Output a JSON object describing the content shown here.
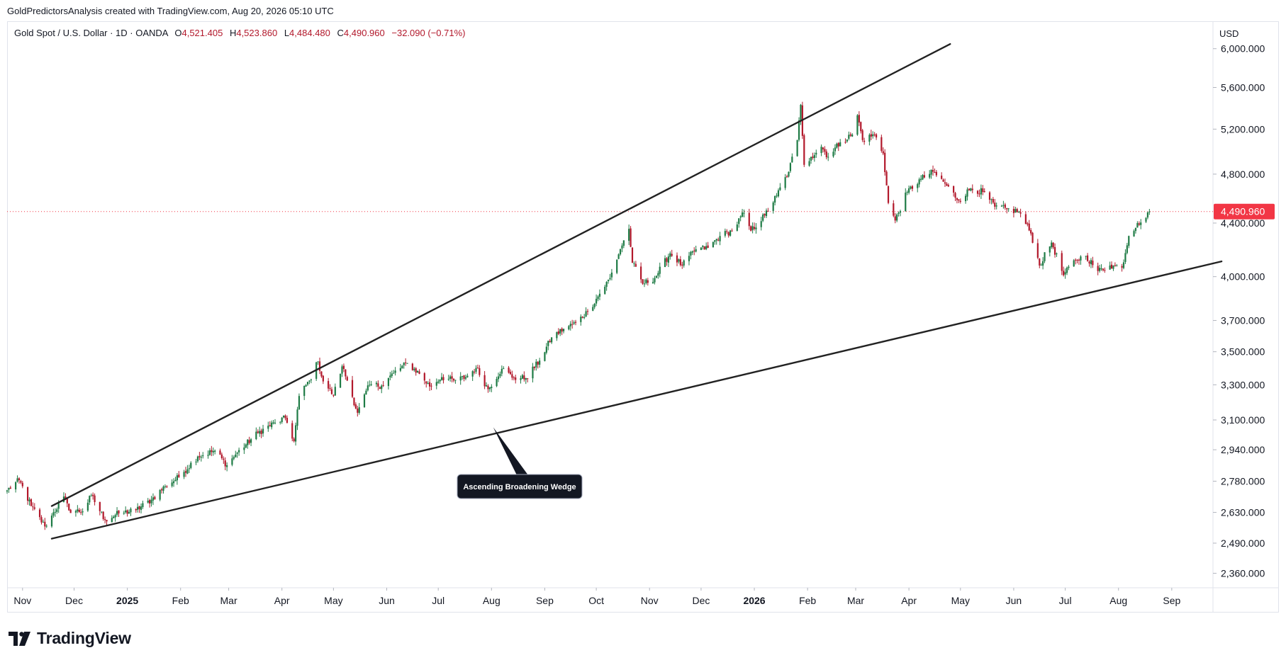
{
  "header": {
    "attribution": "GoldPredictorsAnalysis created with TradingView.com, Aug 20, 2026 05:10 UTC"
  },
  "legend": {
    "symbol": "Gold Spot / U.S. Dollar · 1D · OANDA",
    "open_label": "O",
    "open": "4,521.405",
    "high_label": "H",
    "high": "4,523.860",
    "low_label": "L",
    "low": "4,484.480",
    "close_label": "C",
    "close": "4,490.960",
    "change": "−32.090 (−0.71%)"
  },
  "currency": "USD",
  "logo": {
    "text": "TradingView"
  },
  "colors": {
    "up": "#1e7b45",
    "down": "#b2182b",
    "price_tag": "#f23645",
    "trendline": "#222222",
    "callout_bg": "#131722"
  },
  "chart_data": {
    "type": "candlestick",
    "title": "Gold Spot / U.S. Dollar · 1D · OANDA",
    "y_scale": "log",
    "ylim": [
      2300,
      6300
    ],
    "y_ticks": [
      {
        "value": 6000,
        "label": "6,000.000"
      },
      {
        "value": 5600,
        "label": "5,600.000"
      },
      {
        "value": 5200,
        "label": "5,200.000"
      },
      {
        "value": 4800,
        "label": "4,800.000"
      },
      {
        "value": 4400,
        "label": "4,400.000"
      },
      {
        "value": 4000,
        "label": "4,000.000"
      },
      {
        "value": 3700,
        "label": "3,700.000"
      },
      {
        "value": 3500,
        "label": "3,500.000"
      },
      {
        "value": 3300,
        "label": "3,300.000"
      },
      {
        "value": 3100,
        "label": "3,100.000"
      },
      {
        "value": 2940,
        "label": "2,940.000"
      },
      {
        "value": 2780,
        "label": "2,780.000"
      },
      {
        "value": 2630,
        "label": "2,630.000"
      },
      {
        "value": 2490,
        "label": "2,490.000"
      },
      {
        "value": 2360,
        "label": "2,360.000"
      }
    ],
    "x_range": [
      "2024-10-23",
      "2026-09-25"
    ],
    "x_ticks": [
      {
        "date": "2024-11-01",
        "label": "Nov",
        "bold": false
      },
      {
        "date": "2024-12-01",
        "label": "Dec",
        "bold": false
      },
      {
        "date": "2025-01-01",
        "label": "2025",
        "bold": true
      },
      {
        "date": "2025-02-01",
        "label": "Feb",
        "bold": false
      },
      {
        "date": "2025-03-01",
        "label": "Mar",
        "bold": false
      },
      {
        "date": "2025-04-01",
        "label": "Apr",
        "bold": false
      },
      {
        "date": "2025-05-01",
        "label": "May",
        "bold": false
      },
      {
        "date": "2025-06-01",
        "label": "Jun",
        "bold": false
      },
      {
        "date": "2025-07-01",
        "label": "Jul",
        "bold": false
      },
      {
        "date": "2025-08-01",
        "label": "Aug",
        "bold": false
      },
      {
        "date": "2025-09-01",
        "label": "Sep",
        "bold": false
      },
      {
        "date": "2025-10-01",
        "label": "Oct",
        "bold": false
      },
      {
        "date": "2025-11-01",
        "label": "Nov",
        "bold": false
      },
      {
        "date": "2025-12-01",
        "label": "Dec",
        "bold": false
      },
      {
        "date": "2026-01-01",
        "label": "2026",
        "bold": true
      },
      {
        "date": "2026-02-01",
        "label": "Feb",
        "bold": false
      },
      {
        "date": "2026-03-01",
        "label": "Mar",
        "bold": false
      },
      {
        "date": "2026-04-01",
        "label": "Apr",
        "bold": false
      },
      {
        "date": "2026-05-01",
        "label": "May",
        "bold": false
      },
      {
        "date": "2026-06-01",
        "label": "Jun",
        "bold": false
      },
      {
        "date": "2026-07-01",
        "label": "Jul",
        "bold": false
      },
      {
        "date": "2026-08-01",
        "label": "Aug",
        "bold": false
      },
      {
        "date": "2026-09-01",
        "label": "Sep",
        "bold": false
      }
    ],
    "price_path": [
      [
        "2024-10-23",
        2735
      ],
      [
        "2024-10-30",
        2785
      ],
      [
        "2024-11-06",
        2660
      ],
      [
        "2024-11-14",
        2565
      ],
      [
        "2024-11-18",
        2615
      ],
      [
        "2024-11-25",
        2705
      ],
      [
        "2024-11-28",
        2640
      ],
      [
        "2024-12-06",
        2635
      ],
      [
        "2024-12-11",
        2710
      ],
      [
        "2024-12-19",
        2595
      ],
      [
        "2024-12-27",
        2625
      ],
      [
        "2025-01-06",
        2640
      ],
      [
        "2025-01-15",
        2690
      ],
      [
        "2025-01-23",
        2755
      ],
      [
        "2025-01-31",
        2800
      ],
      [
        "2025-02-11",
        2905
      ],
      [
        "2025-02-21",
        2935
      ],
      [
        "2025-02-28",
        2860
      ],
      [
        "2025-03-05",
        2915
      ],
      [
        "2025-03-18",
        3030
      ],
      [
        "2025-03-28",
        3085
      ],
      [
        "2025-04-03",
        3110
      ],
      [
        "2025-04-08",
        2985
      ],
      [
        "2025-04-11",
        3235
      ],
      [
        "2025-04-17",
        3325
      ],
      [
        "2025-04-22",
        3440
      ],
      [
        "2025-04-25",
        3320
      ],
      [
        "2025-05-01",
        3240
      ],
      [
        "2025-05-06",
        3410
      ],
      [
        "2025-05-09",
        3325
      ],
      [
        "2025-05-15",
        3140
      ],
      [
        "2025-05-22",
        3300
      ],
      [
        "2025-05-29",
        3295
      ],
      [
        "2025-06-05",
        3370
      ],
      [
        "2025-06-13",
        3430
      ],
      [
        "2025-06-20",
        3365
      ],
      [
        "2025-06-26",
        3290
      ],
      [
        "2025-07-03",
        3345
      ],
      [
        "2025-07-10",
        3325
      ],
      [
        "2025-07-17",
        3345
      ],
      [
        "2025-07-23",
        3400
      ],
      [
        "2025-07-30",
        3275
      ],
      [
        "2025-08-07",
        3395
      ],
      [
        "2025-08-14",
        3340
      ],
      [
        "2025-08-21",
        3340
      ],
      [
        "2025-08-29",
        3445
      ],
      [
        "2025-09-05",
        3590
      ],
      [
        "2025-09-12",
        3645
      ],
      [
        "2025-09-19",
        3685
      ],
      [
        "2025-09-26",
        3760
      ],
      [
        "2025-10-03",
        3880
      ],
      [
        "2025-10-09",
        3990
      ],
      [
        "2025-10-15",
        4200
      ],
      [
        "2025-10-20",
        4355
      ],
      [
        "2025-10-22",
        4100
      ],
      [
        "2025-10-28",
        3950
      ],
      [
        "2025-11-04",
        3990
      ],
      [
        "2025-11-13",
        4170
      ],
      [
        "2025-11-20",
        4080
      ],
      [
        "2025-11-28",
        4200
      ],
      [
        "2025-12-05",
        4210
      ],
      [
        "2025-12-12",
        4300
      ],
      [
        "2025-12-19",
        4340
      ],
      [
        "2025-12-26",
        4480
      ],
      [
        "2025-12-30",
        4340
      ],
      [
        "2026-01-07",
        4460
      ],
      [
        "2026-01-14",
        4620
      ],
      [
        "2026-01-21",
        4820
      ],
      [
        "2026-01-26",
        5100
      ],
      [
        "2026-01-28",
        5430
      ],
      [
        "2026-01-30",
        4880
      ],
      [
        "2026-02-03",
        4950
      ],
      [
        "2026-02-09",
        5040
      ],
      [
        "2026-02-13",
        4950
      ],
      [
        "2026-02-20",
        5080
      ],
      [
        "2026-02-27",
        5150
      ],
      [
        "2026-03-02",
        5330
      ],
      [
        "2026-03-05",
        5100
      ],
      [
        "2026-03-12",
        5150
      ],
      [
        "2026-03-17",
        4980
      ],
      [
        "2026-03-20",
        4560
      ],
      [
        "2026-03-24",
        4420
      ],
      [
        "2026-03-31",
        4650
      ],
      [
        "2026-04-08",
        4760
      ],
      [
        "2026-04-15",
        4820
      ],
      [
        "2026-04-22",
        4720
      ],
      [
        "2026-04-30",
        4580
      ],
      [
        "2026-05-07",
        4680
      ],
      [
        "2026-05-14",
        4650
      ],
      [
        "2026-05-21",
        4530
      ],
      [
        "2026-05-28",
        4510
      ],
      [
        "2026-06-04",
        4490
      ],
      [
        "2026-06-11",
        4320
      ],
      [
        "2026-06-16",
        4080
      ],
      [
        "2026-06-23",
        4250
      ],
      [
        "2026-06-30",
        4010
      ],
      [
        "2026-07-07",
        4120
      ],
      [
        "2026-07-13",
        4150
      ],
      [
        "2026-07-20",
        4040
      ],
      [
        "2026-07-27",
        4080
      ],
      [
        "2026-08-03",
        4065
      ],
      [
        "2026-08-07",
        4300
      ],
      [
        "2026-08-12",
        4400
      ],
      [
        "2026-08-17",
        4440
      ],
      [
        "2026-08-19",
        4490.96
      ]
    ],
    "last_price": {
      "value": 4490.96,
      "label": "4,490.960"
    },
    "trendlines": [
      {
        "name": "upper",
        "start": [
          "2024-11-18",
          2660
        ],
        "end": [
          "2026-04-25",
          6050
        ]
      },
      {
        "name": "lower",
        "start": [
          "2024-11-18",
          2510
        ],
        "end": [
          "2026-09-30",
          4110
        ]
      }
    ],
    "annotation": {
      "text": "Ascending Broadening Wedge",
      "anchor": [
        "2025-08-02",
        3060
      ]
    }
  }
}
